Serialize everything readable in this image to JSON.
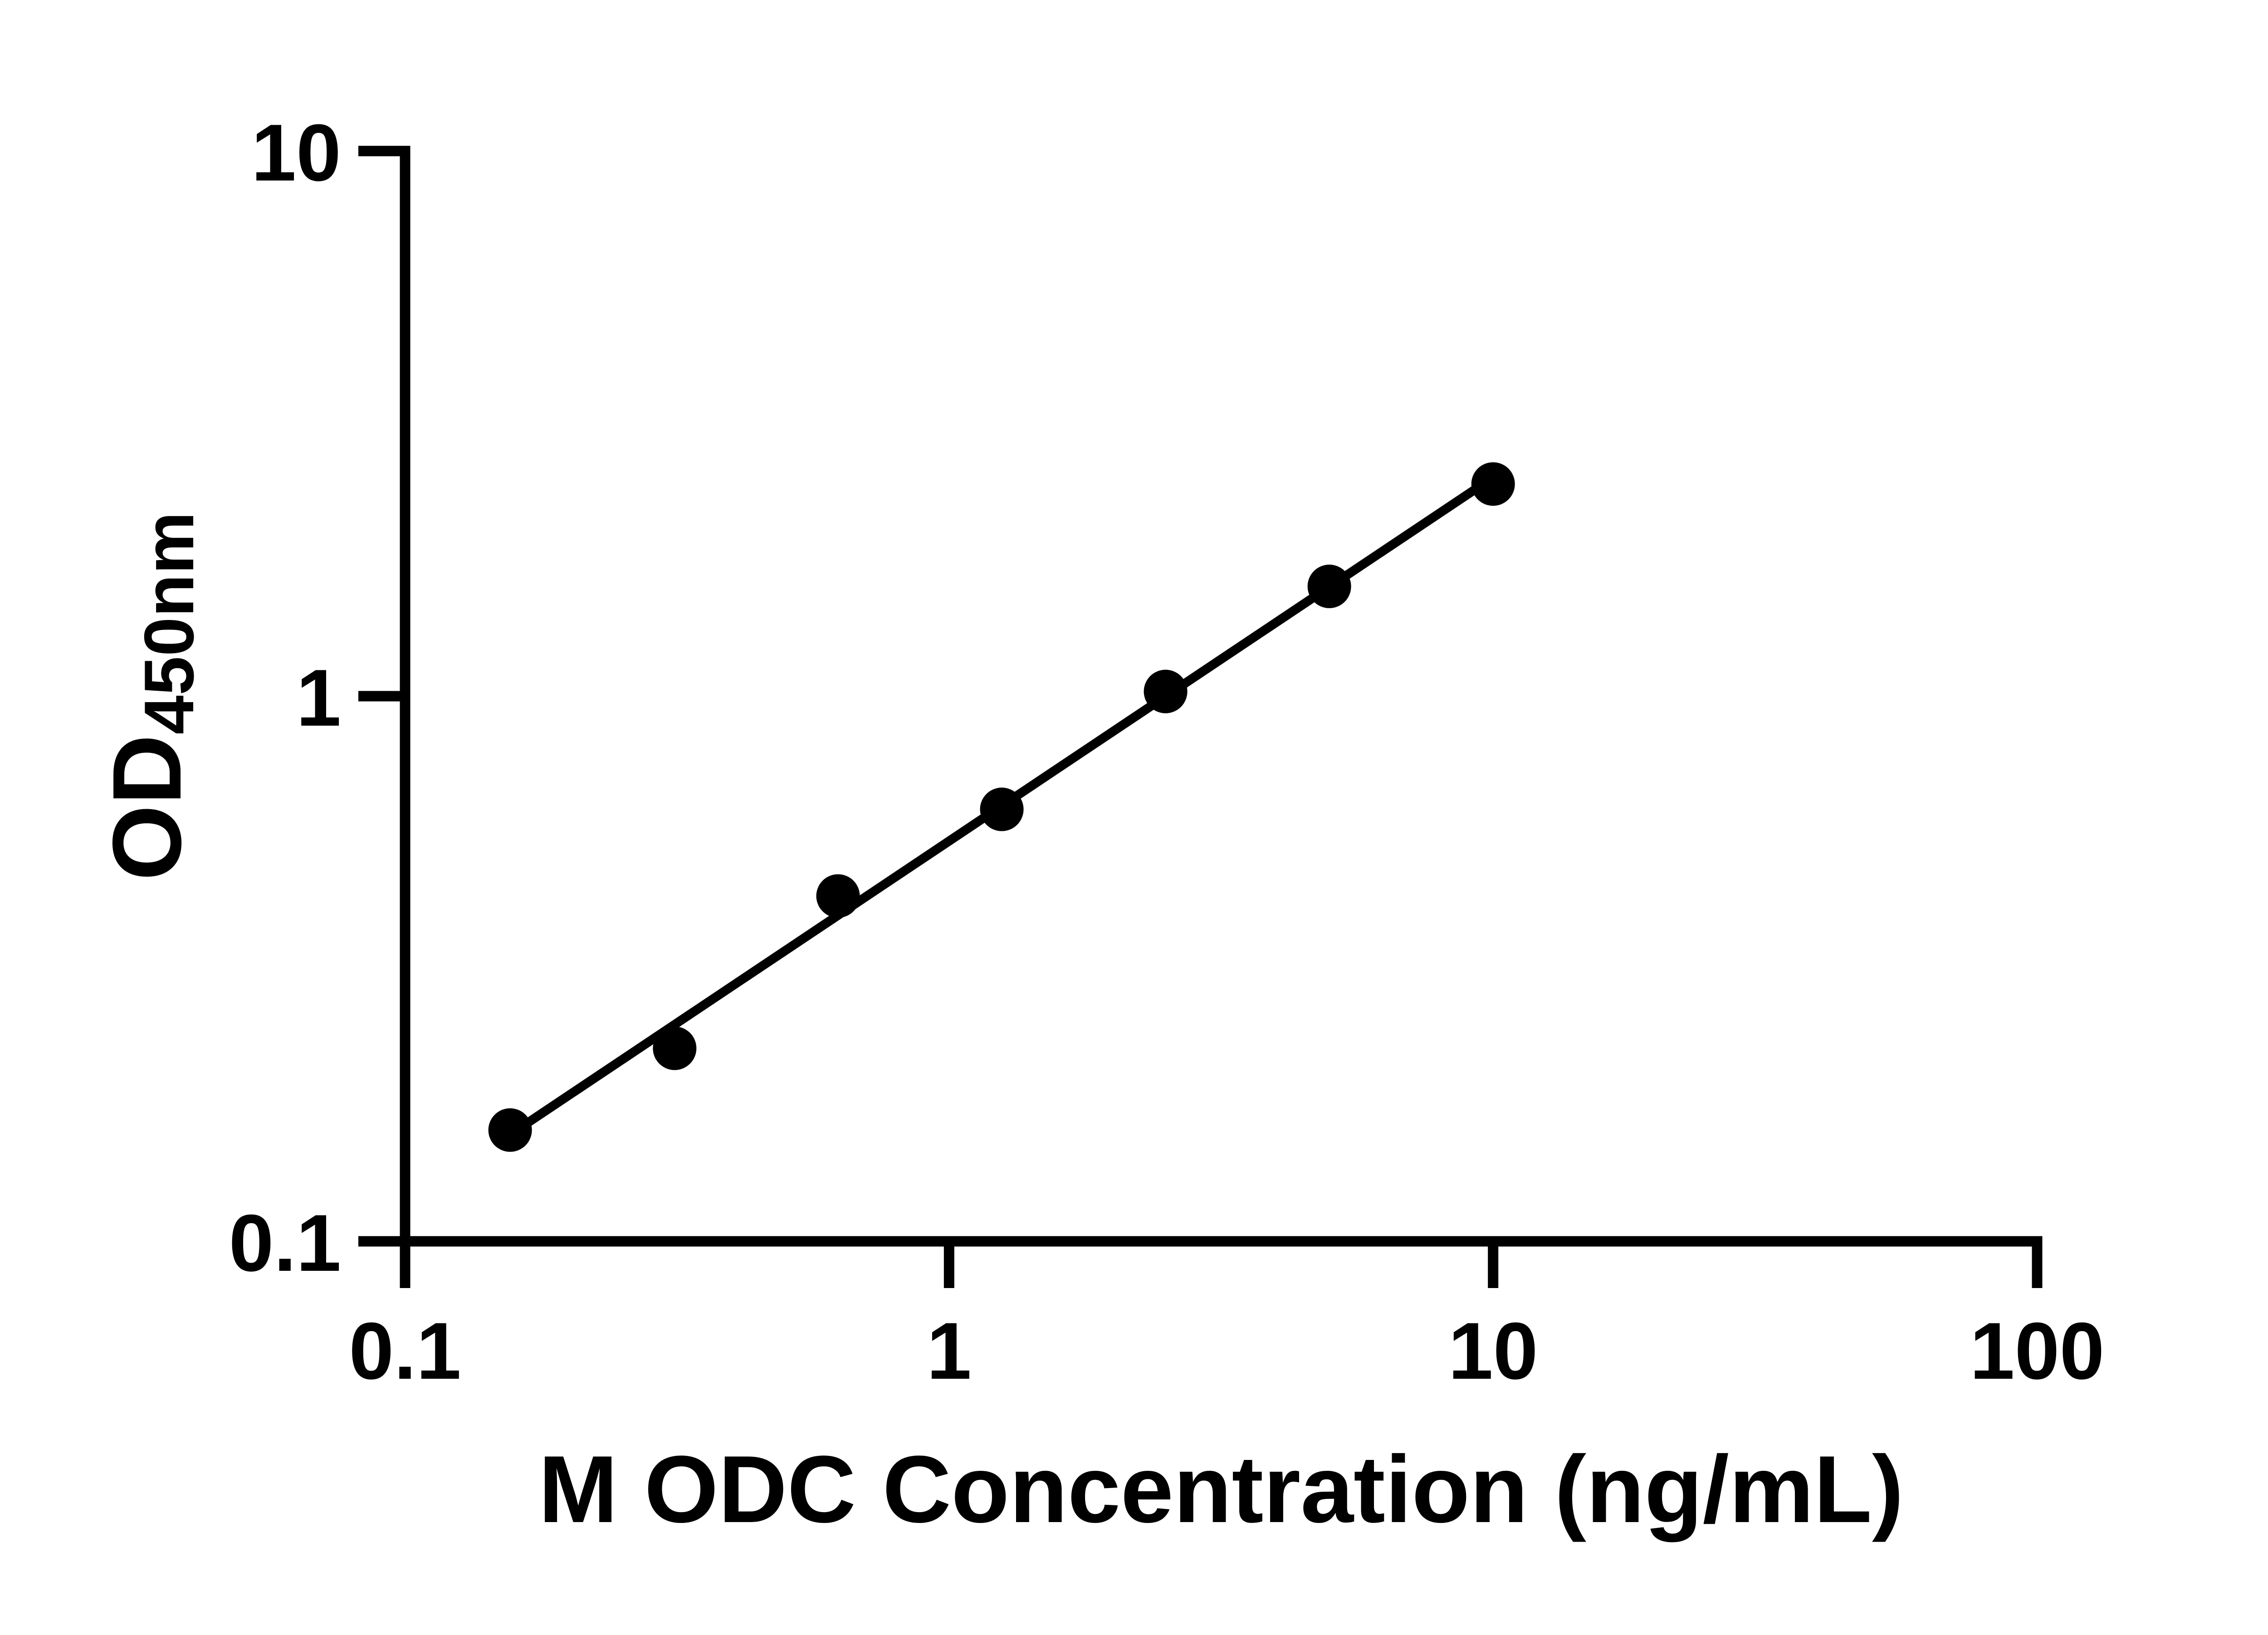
{
  "figure": {
    "background": "#ffffff",
    "ink_color": "#000000"
  },
  "chart_data": {
    "type": "scatter",
    "title": "",
    "xlabel": "M ODC Concentration (ng/mL)",
    "ylabel_main": "OD",
    "ylabel_sub": "450nm",
    "x_scale": "log10",
    "y_scale": "log10",
    "xlim": [
      0.1,
      100
    ],
    "ylim": [
      0.1,
      10
    ],
    "grid": false,
    "legend_position": "none",
    "x_ticks": [
      {
        "value": 0.1,
        "label": "0.1"
      },
      {
        "value": 1,
        "label": "1"
      },
      {
        "value": 10,
        "label": "10"
      },
      {
        "value": 100,
        "label": "100"
      }
    ],
    "y_ticks": [
      {
        "value": 0.1,
        "label": "0.1"
      },
      {
        "value": 1,
        "label": "1"
      },
      {
        "value": 10,
        "label": "10"
      }
    ],
    "series": [
      {
        "name": "standard-curve",
        "marker": "filled-circle",
        "color": "#000000",
        "points": [
          {
            "x": 0.156,
            "y": 0.16
          },
          {
            "x": 0.313,
            "y": 0.226
          },
          {
            "x": 0.625,
            "y": 0.43
          },
          {
            "x": 1.25,
            "y": 0.62
          },
          {
            "x": 2.5,
            "y": 1.02
          },
          {
            "x": 5,
            "y": 1.59
          },
          {
            "x": 10,
            "y": 2.45
          }
        ]
      }
    ],
    "trend_line": {
      "x1": 0.156,
      "y1": 0.157,
      "x2": 10,
      "y2": 2.52
    }
  }
}
